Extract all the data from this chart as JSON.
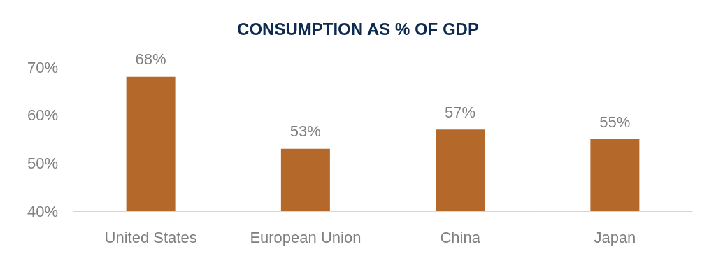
{
  "chart_data": {
    "type": "bar",
    "title": "CONSUMPTION AS % OF GDP",
    "categories": [
      "United States",
      "European Union",
      "China",
      "Japan"
    ],
    "values": [
      68,
      53,
      57,
      55
    ],
    "value_labels": [
      "68%",
      "53%",
      "57%",
      "55%"
    ],
    "color": "#b4692a",
    "ylim": [
      40,
      70
    ],
    "yticks": [
      {
        "value": 40,
        "label": "40%"
      },
      {
        "value": 50,
        "label": "50%"
      },
      {
        "value": 60,
        "label": "60%"
      },
      {
        "value": 70,
        "label": "70%"
      }
    ],
    "grid": false
  }
}
